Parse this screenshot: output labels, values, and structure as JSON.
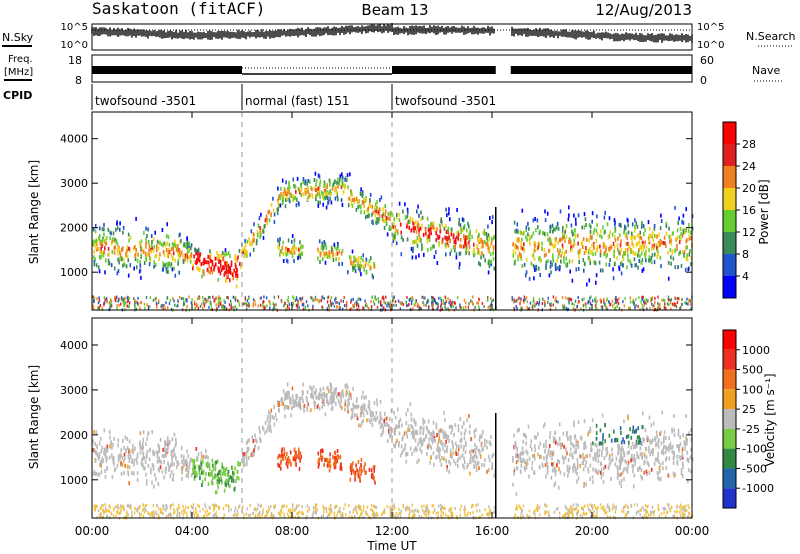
{
  "header": {
    "station": "Saskatoon (fitACF)",
    "beam": "Beam 13",
    "date": "12/Aug/2013"
  },
  "status_panel": {
    "nsky_label": "N.Sky",
    "nsky_ticks": [
      "10^5",
      "10^0"
    ],
    "nsearch_label": "N.Search",
    "nsearch_ticks": [
      "10^5",
      "10^0"
    ],
    "freq_label": "Freq.",
    "freq_unit": "[MHz]",
    "freq_ticks": [
      "18",
      "8"
    ],
    "nave_label": "Nave",
    "nave_ticks": [
      "60",
      "0"
    ],
    "cpid_label": "CPID",
    "cpid_segments": [
      {
        "label": "twofsound -3501",
        "start_h": 0,
        "end_h": 6
      },
      {
        "label": "normal (fast) 151",
        "start_h": 6,
        "end_h": 12
      },
      {
        "label": "twofsound -3501",
        "start_h": 12,
        "end_h": 24
      }
    ]
  },
  "chart_data": [
    {
      "type": "heatmap",
      "name": "power-panel",
      "ylabel": "Slant Range [km]",
      "xlabel": "",
      "xlim": [
        0,
        24
      ],
      "ylim": [
        150,
        4600
      ],
      "yticks": [
        "1000",
        "2000",
        "3000",
        "4000"
      ],
      "ytick_values": [
        1000,
        2000,
        3000,
        4000
      ],
      "colorbar": {
        "label": "Power [dB]",
        "ticks": [
          "4",
          "8",
          "12",
          "16",
          "20",
          "24",
          "28"
        ],
        "colors": [
          "#0000ff",
          "#2255cc",
          "#3a8a5a",
          "#66cc33",
          "#f0d020",
          "#f08020",
          "#e02020",
          "#ff0000"
        ],
        "range": [
          0,
          32
        ]
      },
      "data_gap_h": [
        16.15,
        16.75
      ],
      "mode_change_h": [
        6,
        12
      ]
    },
    {
      "type": "heatmap",
      "name": "velocity-panel",
      "ylabel": "Slant Range [km]",
      "xlabel": "Time UT",
      "xlim": [
        0,
        24
      ],
      "ylim": [
        150,
        4600
      ],
      "yticks": [
        "1000",
        "2000",
        "3000",
        "4000"
      ],
      "ytick_values": [
        1000,
        2000,
        3000,
        4000
      ],
      "xticks": [
        "00:00",
        "04:00",
        "08:00",
        "12:00",
        "16:00",
        "20:00",
        "00:00"
      ],
      "xtick_values": [
        0,
        4,
        8,
        12,
        16,
        20,
        24
      ],
      "colorbar": {
        "label": "Velocity [m s⁻¹]",
        "ticks": [
          "1000",
          "500",
          "100",
          "25",
          "-25",
          "-100",
          "-500",
          "-1000"
        ],
        "colors": [
          "#2233cc",
          "#2266aa",
          "#338844",
          "#77cc44",
          "#bbbbbb",
          "#f0a020",
          "#f07020",
          "#ee3020",
          "#ff0000"
        ]
      },
      "data_gap_h": [
        16.15,
        16.75
      ],
      "mode_change_h": [
        6,
        12
      ]
    }
  ],
  "colors": {
    "ground_scatter": "#bbbbbb",
    "frame": "#000000",
    "dashed_marker": "#999999"
  }
}
